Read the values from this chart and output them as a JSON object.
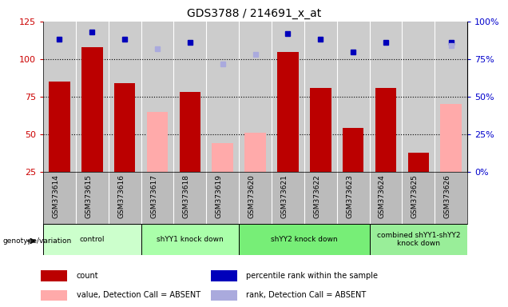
{
  "title": "GDS3788 / 214691_x_at",
  "samples": [
    "GSM373614",
    "GSM373615",
    "GSM373616",
    "GSM373617",
    "GSM373618",
    "GSM373619",
    "GSM373620",
    "GSM373621",
    "GSM373622",
    "GSM373623",
    "GSM373624",
    "GSM373625",
    "GSM373626"
  ],
  "count": [
    85,
    108,
    84,
    null,
    78,
    null,
    null,
    105,
    81,
    54,
    81,
    38,
    null
  ],
  "percentile_rank": [
    88,
    93,
    88,
    null,
    86,
    null,
    null,
    92,
    88,
    80,
    86,
    null,
    86
  ],
  "absent_value": [
    null,
    null,
    null,
    65,
    null,
    44,
    51,
    null,
    null,
    null,
    null,
    null,
    70
  ],
  "absent_rank": [
    null,
    null,
    null,
    82,
    null,
    72,
    78,
    null,
    null,
    null,
    null,
    null,
    84
  ],
  "groups": [
    {
      "label": "control",
      "start": 0,
      "end": 2,
      "color": "#ccffcc"
    },
    {
      "label": "shYY1 knock down",
      "start": 3,
      "end": 5,
      "color": "#aaffaa"
    },
    {
      "label": "shYY2 knock down",
      "start": 6,
      "end": 9,
      "color": "#77ee77"
    },
    {
      "label": "combined shYY1-shYY2\nknock down",
      "start": 10,
      "end": 12,
      "color": "#99ee99"
    }
  ],
  "ylim_left": [
    25,
    125
  ],
  "ylim_right": [
    0,
    100
  ],
  "yticks_left": [
    25,
    50,
    75,
    100,
    125
  ],
  "yticks_right": [
    0,
    25,
    50,
    75,
    100
  ],
  "ytick_labels_right": [
    "0%",
    "25%",
    "50%",
    "75%",
    "100%"
  ],
  "bar_color_red": "#bb0000",
  "bar_color_pink": "#ffaaaa",
  "dot_color_blue": "#0000bb",
  "dot_color_light_blue": "#aaaadd",
  "bg_color_plot": "#cccccc",
  "bg_color_xtick": "#bbbbbb",
  "bg_color_fig": "#ffffff",
  "legend_items": [
    {
      "color": "#bb0000",
      "label": "count"
    },
    {
      "color": "#0000bb",
      "label": "percentile rank within the sample"
    },
    {
      "color": "#ffaaaa",
      "label": "value, Detection Call = ABSENT"
    },
    {
      "color": "#aaaadd",
      "label": "rank, Detection Call = ABSENT"
    }
  ]
}
